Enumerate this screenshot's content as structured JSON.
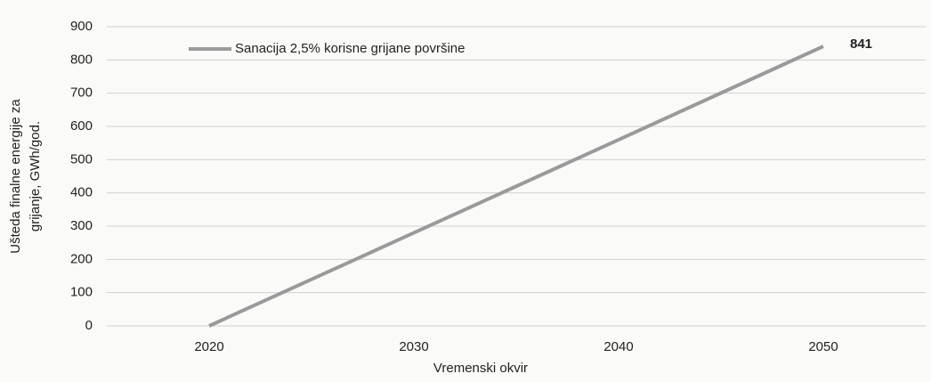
{
  "chart_data": {
    "type": "line",
    "y_label": [
      "Ušteda finalne energije za",
      "grijanje, GWh/god."
    ],
    "x_label": "Vremenski okvir",
    "categories": [
      "2020",
      "2030",
      "2040",
      "2050"
    ],
    "series": [
      {
        "name": "Sanacija 2,5% korisne grijane površine",
        "color": "#9a9a9a",
        "values": [
          0,
          280,
          560,
          841
        ]
      }
    ],
    "ylim": [
      0,
      900
    ],
    "yticks": [
      0,
      100,
      200,
      300,
      400,
      500,
      600,
      700,
      800,
      900
    ],
    "grid": true,
    "legend": "top-left",
    "label_last": true
  }
}
